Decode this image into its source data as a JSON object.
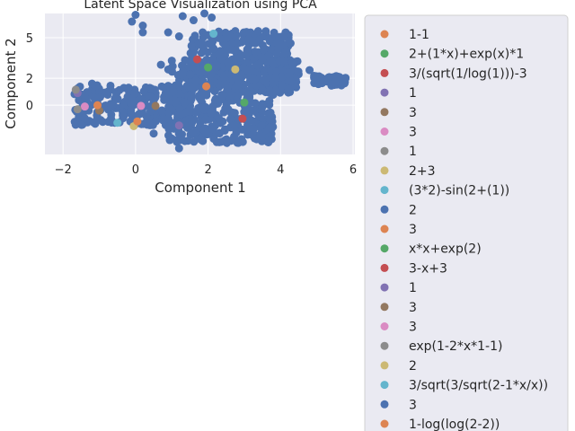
{
  "chart_data": {
    "type": "scatter",
    "title": "Latent Space Visualization using PCA",
    "xlabel": "Component 1",
    "ylabel": "Component 2",
    "xlim": [
      -2.5,
      6.05
    ],
    "ylim": [
      -3.65,
      6.8
    ],
    "xticks": [
      "−2",
      "0",
      "2",
      "4",
      "6"
    ],
    "xtick_values": [
      -2,
      0,
      2,
      4,
      6
    ],
    "yticks": [
      "0",
      "2",
      "5"
    ],
    "ytick_values": [
      0,
      2,
      5
    ],
    "grid": true,
    "legend_position": "outside right",
    "background_color": "#eaeaf2",
    "bulk_color": "#4c72b0",
    "bulk_clusters": [
      {
        "x": [
          -1.7,
          1.6
        ],
        "y": [
          -1.5,
          1.5
        ]
      },
      {
        "x": [
          0.9,
          3.8
        ],
        "y": [
          -2.8,
          3.4
        ]
      },
      {
        "x": [
          1.5,
          4.3
        ],
        "y": [
          1.2,
          5.5
        ]
      },
      {
        "x": [
          3.7,
          4.5
        ],
        "y": [
          0.9,
          3.4
        ]
      },
      {
        "x": [
          4.9,
          5.8
        ],
        "y": [
          1.4,
          2.2
        ]
      }
    ],
    "bulk_points": [
      {
        "x": 0.0,
        "y": 6.7
      },
      {
        "x": -0.1,
        "y": 6.2
      },
      {
        "x": 0.2,
        "y": 5.9
      },
      {
        "x": 0.2,
        "y": 5.4
      },
      {
        "x": 1.3,
        "y": 6.6
      },
      {
        "x": 1.6,
        "y": 6.3
      },
      {
        "x": 0.9,
        "y": 5.4
      },
      {
        "x": 1.2,
        "y": 5.1
      },
      {
        "x": 1.9,
        "y": 6.8
      },
      {
        "x": 2.1,
        "y": 6.5
      },
      {
        "x": 2.0,
        "y": 5.2
      },
      {
        "x": 1.2,
        "y": -3.2
      },
      {
        "x": 0.5,
        "y": -2.1
      },
      {
        "x": -1.2,
        "y": 1.6
      },
      {
        "x": 1.0,
        "y": 3.3
      },
      {
        "x": 0.7,
        "y": 3.0
      },
      {
        "x": 5.2,
        "y": 1.8
      },
      {
        "x": 5.5,
        "y": 1.7
      },
      {
        "x": 5.7,
        "y": 1.9
      },
      {
        "x": 4.8,
        "y": 2.6
      }
    ],
    "series": [
      {
        "name": "1-1",
        "color": "#dd8452",
        "x": [
          1.95
        ],
        "y": [
          1.4
        ]
      },
      {
        "name": "2+(1*x)+exp(x)*1",
        "color": "#55a868",
        "x": [
          2.0
        ],
        "y": [
          2.8
        ]
      },
      {
        "name": "3/(sqrt(1/log(1)))-3",
        "color": "#c44e52",
        "x": [
          1.7
        ],
        "y": [
          3.4
        ]
      },
      {
        "name": "1",
        "color": "#8172b3",
        "x": [
          -1.6
        ],
        "y": [
          0.9
        ]
      },
      {
        "name": "3",
        "color": "#937860",
        "x": [
          -1.0
        ],
        "y": [
          -0.4
        ]
      },
      {
        "name": "3",
        "color": "#da8bc3",
        "x": [
          -1.4
        ],
        "y": [
          -0.1
        ]
      },
      {
        "name": "1",
        "color": "#8c8c8c",
        "x": [
          -1.65
        ],
        "y": [
          1.15
        ]
      },
      {
        "name": "2+3",
        "color": "#ccb974",
        "x": [
          2.75
        ],
        "y": [
          2.65
        ]
      },
      {
        "name": "(3*2)-sin(2+(1))",
        "color": "#64b5cd",
        "x": [
          2.15
        ],
        "y": [
          5.3
        ]
      },
      {
        "name": "2",
        "color": "#4c72b0",
        "x": [
          1.8
        ],
        "y": [
          0.4
        ]
      },
      {
        "name": "3",
        "color": "#dd8452",
        "x": [
          -1.05
        ],
        "y": [
          0.0
        ]
      },
      {
        "name": "x*x+exp(2)",
        "color": "#55a868",
        "x": [
          3.0
        ],
        "y": [
          0.2
        ]
      },
      {
        "name": "3-x+3",
        "color": "#c44e52",
        "x": [
          2.95
        ],
        "y": [
          -1.0
        ]
      },
      {
        "name": "1",
        "color": "#8172b3",
        "x": [
          1.2
        ],
        "y": [
          -1.5
        ]
      },
      {
        "name": "3",
        "color": "#937860",
        "x": [
          0.55
        ],
        "y": [
          -0.05
        ]
      },
      {
        "name": "3",
        "color": "#da8bc3",
        "x": [
          0.15
        ],
        "y": [
          -0.05
        ]
      },
      {
        "name": "exp(1-2*x*1-1)",
        "color": "#8c8c8c",
        "x": [
          -1.6
        ],
        "y": [
          -0.3
        ]
      },
      {
        "name": "2",
        "color": "#ccb974",
        "x": [
          -0.05
        ],
        "y": [
          -1.55
        ]
      },
      {
        "name": "3/sqrt(3/sqrt(2-1*x/x))",
        "color": "#64b5cd",
        "x": [
          -0.5
        ],
        "y": [
          -1.3
        ]
      },
      {
        "name": "3",
        "color": "#4c72b0",
        "x": [
          2.45
        ],
        "y": [
          1.6
        ]
      },
      {
        "name": "1-log(log(2-2))",
        "color": "#dd8452",
        "x": [
          0.05
        ],
        "y": [
          -1.2
        ]
      }
    ]
  }
}
